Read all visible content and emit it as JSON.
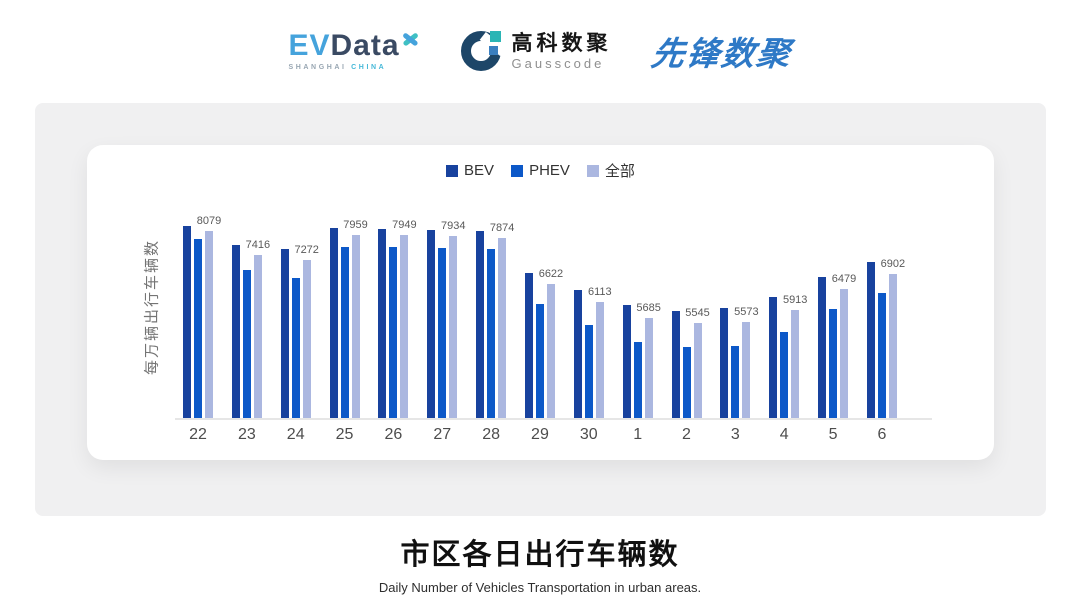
{
  "header": {
    "evdata": {
      "ev": "EV",
      "data": "Data",
      "shanghai": "SHANGHAI",
      "china": "CHINA"
    },
    "gausscode": {
      "cn": "高科数聚",
      "en": "Gausscode"
    },
    "xianfeng": {
      "text": "先锋数聚"
    }
  },
  "brand_colors": {
    "evdata_blue": "#45a3dc",
    "evdata_dark": "#3a4a63",
    "evdata_teal": "#3fc0c4",
    "gausscode_navy": "#1d4668",
    "gausscode_teal": "#2ab5b5",
    "gausscode_blue": "#3a7fc0",
    "xianfeng_blue": "#2e79c6"
  },
  "chart_data": {
    "type": "bar",
    "title": "市区各日出行车辆数",
    "subtitle": "Daily Number of Vehicles Transportation in urban areas.",
    "ylabel": "每万辆出行车辆数",
    "xlabel": "",
    "categories": [
      "22",
      "23",
      "24",
      "25",
      "26",
      "27",
      "28",
      "29",
      "30",
      "1",
      "2",
      "3",
      "4",
      "5",
      "6"
    ],
    "series": [
      {
        "key": "bev",
        "name": "BEV",
        "color": "#18429e",
        "values": [
          8215,
          7670,
          7560,
          8150,
          8125,
          8105,
          8070,
          6925,
          6440,
          6030,
          5890,
          5950,
          6255,
          6800,
          7220
        ]
      },
      {
        "key": "phev",
        "name": "PHEV",
        "color": "#0c58c8",
        "values": [
          7835,
          6990,
          6770,
          7635,
          7635,
          7590,
          7560,
          6080,
          5490,
          5030,
          4905,
          4910,
          5310,
          5920,
          6365
        ]
      },
      {
        "key": "all",
        "name": "全部",
        "color": "#abb7e0",
        "values": [
          8079,
          7416,
          7272,
          7959,
          7949,
          7934,
          7874,
          6622,
          6113,
          5685,
          5545,
          5573,
          5913,
          6479,
          6902
        ]
      }
    ],
    "value_labels": [
      8079,
      7416,
      7272,
      7959,
      7949,
      7934,
      7874,
      6622,
      6113,
      5685,
      5545,
      5573,
      5913,
      6479,
      6902
    ],
    "value_labels_on_series": "全部",
    "legend": {
      "position": "top",
      "entries": [
        "BEV",
        "PHEV",
        "全部"
      ]
    },
    "axis": {
      "y_min": 2950,
      "y_max": 8420,
      "y_ticks_visible": false,
      "gridlines": false
    }
  }
}
